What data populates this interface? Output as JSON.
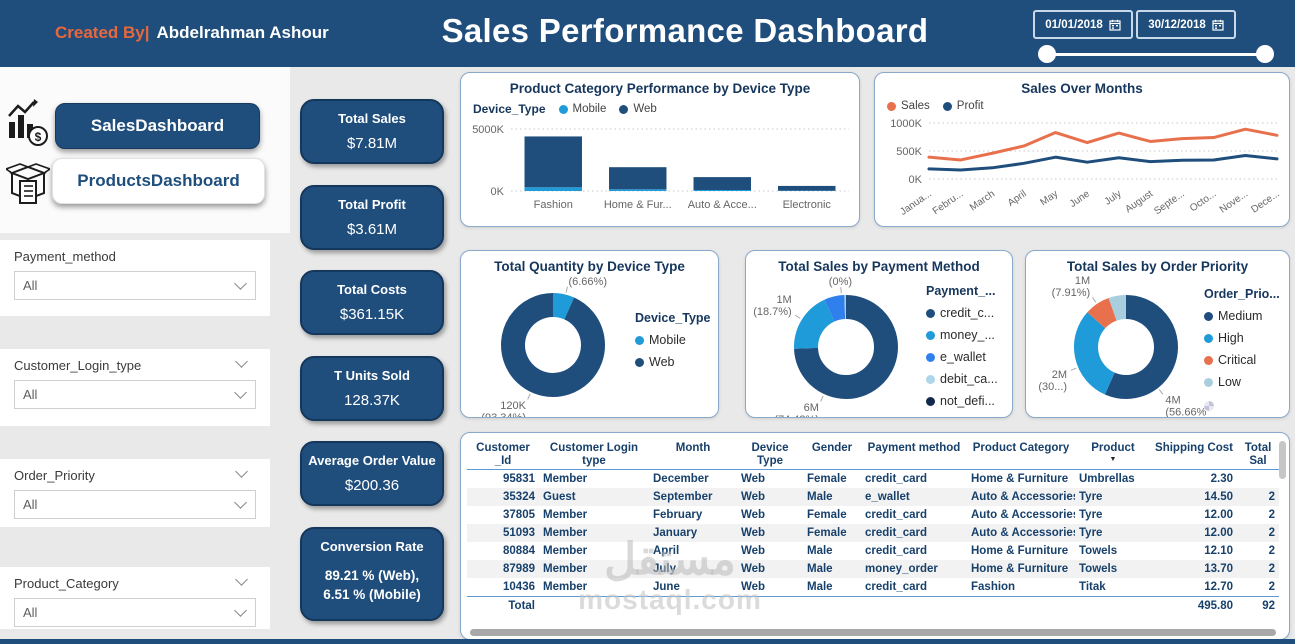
{
  "header": {
    "created_by_label": "Created By|",
    "created_by_name": "Abdelrahman Ashour",
    "title": "Sales Performance Dashboard",
    "date_from": "01/01/2018",
    "date_to": "30/12/2018"
  },
  "sidebar": {
    "nav": [
      {
        "label": "SalesDashboard"
      },
      {
        "label": "ProductsDashboard"
      }
    ],
    "filters": [
      {
        "label": "Payment_method",
        "value": "All"
      },
      {
        "label": "Customer_Login_type",
        "value": "All"
      },
      {
        "label": "Order_Priority",
        "value": "All"
      },
      {
        "label": "Product_Category",
        "value": "All"
      }
    ]
  },
  "kpis": [
    {
      "label": "Total Sales",
      "value": "$7.81M"
    },
    {
      "label": "Total Profit",
      "value": "$3.61M"
    },
    {
      "label": "Total Costs",
      "value": "$361.15K"
    },
    {
      "label": "T Units Sold",
      "value": "128.37K"
    },
    {
      "label": "Average Order Value",
      "value": "$200.36"
    },
    {
      "label": "Conversion Rate",
      "value": "89.21 % (Web),\n6.51 % (Mobile)"
    }
  ],
  "colors": {
    "navy": "#1f4e7d",
    "web": "#1f4e7d",
    "mobile": "#1e9bd8",
    "orange": "#e8704c",
    "ewallet": "#2f80ed",
    "debit": "#aed6ea",
    "notdef": "#12294d",
    "low": "#a9cfdf"
  },
  "chart_data": [
    {
      "id": "bar-category-device",
      "type": "bar",
      "stacked": true,
      "title": "Product Category Performance by Device Type",
      "legend_title": "Device_Type",
      "legend_position": "top-left",
      "categories": [
        "Fashion",
        "Home & Fur...",
        "Auto & Acce...",
        "Electronic"
      ],
      "series": [
        {
          "name": "Mobile",
          "color_key": "mobile",
          "values": [
            300,
            140,
            80,
            30
          ]
        },
        {
          "name": "Web",
          "color_key": "web",
          "values": [
            4100,
            1780,
            1040,
            380
          ]
        }
      ],
      "ylim": [
        0,
        5000
      ],
      "yticks": [
        {
          "v": 0,
          "label": "0K"
        },
        {
          "v": 5000,
          "label": "5000K"
        }
      ],
      "grid": "dotted",
      "unit": "K"
    },
    {
      "id": "line-sales-months",
      "type": "line",
      "title": "Sales Over Months",
      "legend_position": "top-left",
      "x": [
        "Janua...",
        "Febru...",
        "March",
        "April",
        "May",
        "June",
        "July",
        "August",
        "Septe...",
        "Octo...",
        "Nove...",
        "Dece..."
      ],
      "series": [
        {
          "name": "Sales",
          "color_key": "orange",
          "values": [
            390,
            340,
            460,
            590,
            830,
            650,
            820,
            670,
            720,
            740,
            890,
            780
          ]
        },
        {
          "name": "Profit",
          "color_key": "web",
          "values": [
            180,
            160,
            200,
            280,
            390,
            300,
            380,
            310,
            335,
            340,
            420,
            360
          ]
        }
      ],
      "ylim": [
        0,
        1000
      ],
      "yticks": [
        {
          "v": 0,
          "label": "0K"
        },
        {
          "v": 500,
          "label": "500K"
        },
        {
          "v": 1000,
          "label": "1000K"
        }
      ],
      "grid": "dotted",
      "unit": "K"
    },
    {
      "id": "donut-quantity-device",
      "type": "pie",
      "title": "Total Quantity by Device Type",
      "legend_title": "Device_Type",
      "legend_position": "right",
      "slices": [
        {
          "name": "Mobile",
          "pct": 6.66,
          "label": "9K\n(6.66%)",
          "color_key": "mobile"
        },
        {
          "name": "Web",
          "pct": 93.34,
          "label": "120K\n(93.34%)",
          "color_key": "web"
        }
      ]
    },
    {
      "id": "donut-sales-payment",
      "type": "pie",
      "title": "Total Sales by Payment Method",
      "legend_title": "Payment_...",
      "legend_position": "right",
      "slices": [
        {
          "name": "credit_c...",
          "pct": 74.48,
          "label": "6M\n(74.48%)",
          "color_key": "web"
        },
        {
          "name": "money_...",
          "pct": 18.7,
          "label": "1M\n(18.7%)",
          "color_key": "mobile"
        },
        {
          "name": "e_wallet",
          "pct": 6.32,
          "label": "",
          "color_key": "ewallet"
        },
        {
          "name": "debit_ca...",
          "pct": 0.48,
          "label": "0M\n(0%)",
          "color_key": "debit"
        },
        {
          "name": "not_defi...",
          "pct": 0.02,
          "label": "",
          "color_key": "notdef"
        }
      ]
    },
    {
      "id": "donut-sales-priority",
      "type": "pie",
      "title": "Total Sales by Order Priority",
      "legend_title": "Order_Prio...",
      "legend_position": "right",
      "slices": [
        {
          "name": "Medium",
          "pct": 56.66,
          "label": "4M\n(56.66%)",
          "color_key": "web"
        },
        {
          "name": "High",
          "pct": 30.0,
          "label": "2M\n(30...)",
          "color_key": "mobile"
        },
        {
          "name": "Critical",
          "pct": 7.91,
          "label": "1M\n(7.91%)",
          "color_key": "orange"
        },
        {
          "name": "Low",
          "pct": 5.43,
          "label": "",
          "color_key": "low"
        }
      ]
    }
  ],
  "table": {
    "columns": [
      "Customer\n_Id",
      "Customer Login type",
      "Month",
      "Device Type",
      "Gender",
      "Payment method",
      "Product Category",
      "Product",
      "Shipping Cost",
      "Total Sal"
    ],
    "sorted_column_index": 7,
    "rows": [
      [
        "95831",
        "Member",
        "December",
        "Web",
        "Female",
        "credit_card",
        "Home & Furniture",
        "Umbrellas",
        "2.30",
        ""
      ],
      [
        "35324",
        "Guest",
        "September",
        "Web",
        "Male",
        "e_wallet",
        "Auto & Accessories",
        "Tyre",
        "14.50",
        "2"
      ],
      [
        "37805",
        "Member",
        "February",
        "Web",
        "Female",
        "credit_card",
        "Auto & Accessories",
        "Tyre",
        "12.00",
        "2"
      ],
      [
        "51093",
        "Member",
        "January",
        "Web",
        "Female",
        "credit_card",
        "Auto & Accessories",
        "Tyre",
        "12.00",
        "2"
      ],
      [
        "80884",
        "Member",
        "April",
        "Web",
        "Male",
        "credit_card",
        "Home & Furniture",
        "Towels",
        "12.10",
        "2"
      ],
      [
        "87989",
        "Member",
        "July",
        "Web",
        "Male",
        "money_order",
        "Home & Furniture",
        "Towels",
        "13.70",
        "2"
      ],
      [
        "10436",
        "Member",
        "June",
        "Web",
        "Male",
        "credit_card",
        "Fashion",
        "Titak",
        "12.70",
        "2"
      ]
    ],
    "total_row": {
      "label": "Total",
      "shipping_cost": "495.80",
      "total_sales": "92"
    }
  },
  "watermark": {
    "line1": "مستقل",
    "line2": "mostaql.com"
  }
}
